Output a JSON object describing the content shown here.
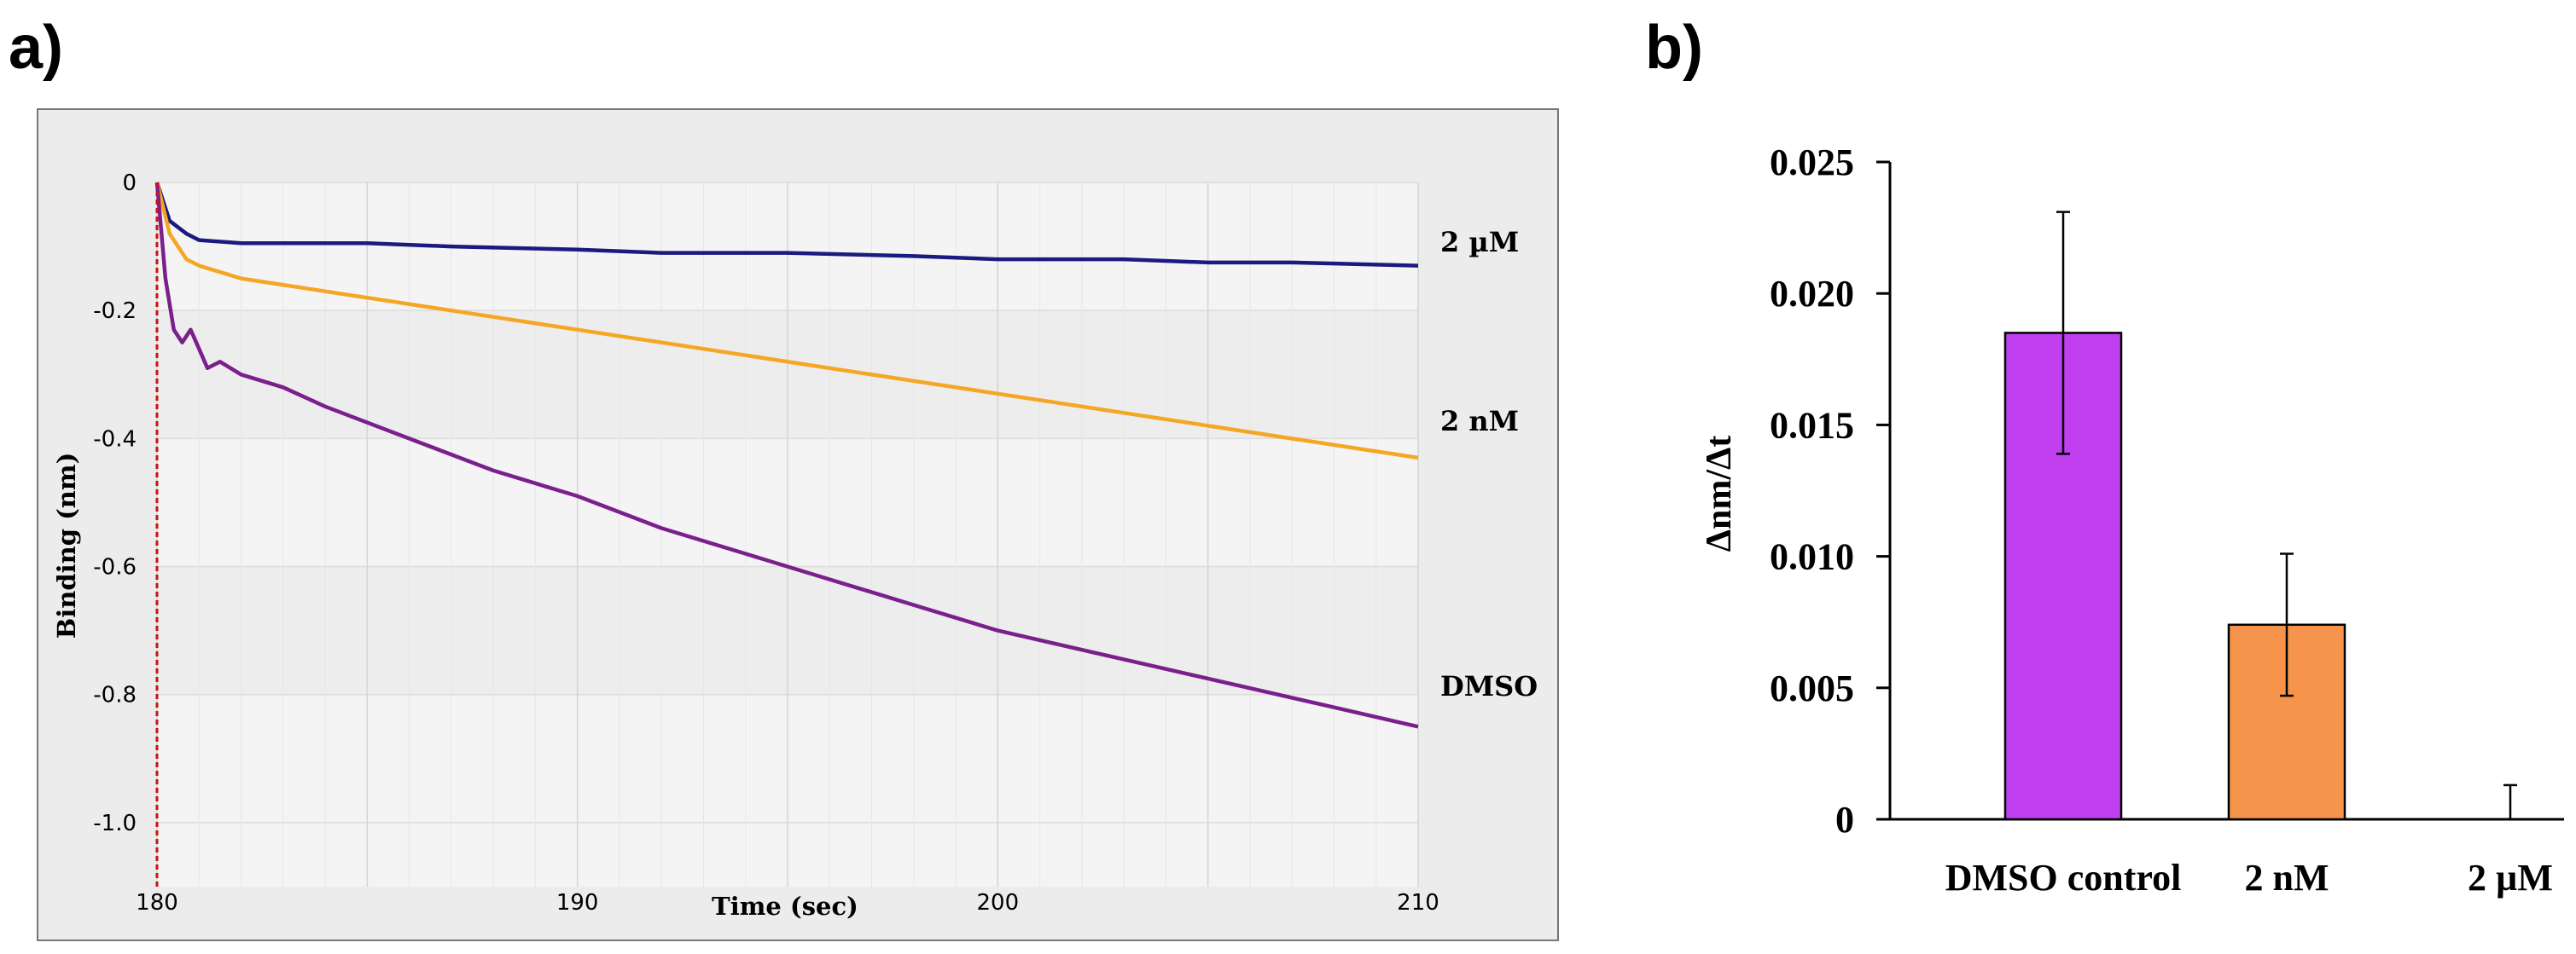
{
  "panels": {
    "a": "a)",
    "b": "b)"
  },
  "chart_data": [
    {
      "id": "a",
      "type": "line",
      "xlabel": "Time (sec)",
      "ylabel": "Binding (nm)",
      "xlim": [
        180,
        210
      ],
      "ylim": [
        -1.1,
        0
      ],
      "xticks": [
        180,
        190,
        200,
        210
      ],
      "xtick_labels": [
        "180",
        "190",
        "200",
        "210"
      ],
      "yticks": [
        0,
        -0.2,
        -0.4,
        -0.6,
        -0.8,
        -1.0
      ],
      "ytick_labels": [
        "0",
        "-0.2",
        "-0.4",
        "-0.6",
        "-0.8",
        "-1.0"
      ],
      "grid": true,
      "series": [
        {
          "name": "2 µM",
          "color": "#1a1a80",
          "x": [
            180,
            180.3,
            180.7,
            181,
            182,
            185,
            187,
            190,
            192,
            195,
            198,
            200,
            203,
            205,
            207,
            210
          ],
          "y": [
            0,
            -0.06,
            -0.08,
            -0.09,
            -0.095,
            -0.095,
            -0.1,
            -0.105,
            -0.11,
            -0.11,
            -0.115,
            -0.12,
            -0.12,
            -0.125,
            -0.125,
            -0.13
          ]
        },
        {
          "name": "2 nM",
          "color": "#f5a623",
          "x": [
            180,
            180.3,
            180.7,
            181,
            182,
            184,
            186,
            188,
            190,
            192,
            194,
            196,
            198,
            200,
            202,
            204,
            206,
            208,
            210
          ],
          "y": [
            0,
            -0.08,
            -0.12,
            -0.13,
            -0.15,
            -0.17,
            -0.19,
            -0.21,
            -0.23,
            -0.25,
            -0.27,
            -0.29,
            -0.31,
            -0.33,
            -0.35,
            -0.37,
            -0.39,
            -0.41,
            -0.43
          ]
        },
        {
          "name": "DMSO",
          "color": "#7b1f8c",
          "x": [
            180,
            180.2,
            180.4,
            180.6,
            180.8,
            181,
            181.2,
            181.5,
            182,
            183,
            184,
            186,
            188,
            190,
            192,
            194,
            196,
            198,
            200,
            202,
            204,
            206,
            208,
            210
          ],
          "y": [
            0,
            -0.15,
            -0.23,
            -0.25,
            -0.23,
            -0.26,
            -0.29,
            -0.28,
            -0.3,
            -0.32,
            -0.35,
            -0.4,
            -0.45,
            -0.49,
            -0.54,
            -0.58,
            -0.62,
            -0.66,
            -0.7,
            -0.73,
            -0.76,
            -0.79,
            -0.82,
            -0.85
          ]
        }
      ],
      "end_labels": [
        "2 µM",
        "2 nM",
        "DMSO"
      ]
    },
    {
      "id": "b",
      "type": "bar",
      "ylabel": "Δnm/Δt",
      "categories": [
        "DMSO control",
        "2 nM",
        "2 µM"
      ],
      "values": [
        0.0185,
        0.0074,
        0.0
      ],
      "errors": [
        0.0046,
        0.0027,
        0.0013
      ],
      "colors": [
        "#c040f0",
        "#f5944a",
        "#ffffff"
      ],
      "ylim": [
        0,
        0.025
      ],
      "yticks": [
        0,
        0.005,
        0.01,
        0.015,
        0.02,
        0.025
      ],
      "ytick_labels": [
        "0",
        "0.005",
        "0.010",
        "0.015",
        "0.020",
        "0.025"
      ]
    }
  ]
}
